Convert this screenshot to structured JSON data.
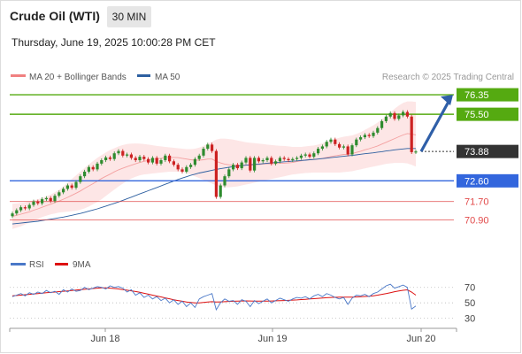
{
  "header": {
    "title": "Crude Oil (WTI)",
    "timeframe": "30 MIN",
    "timestamp": "Thursday, June 19, 2025 10:00:28 PM CET"
  },
  "legend": {
    "items": [
      {
        "label": "MA 20 + Bollinger Bands",
        "color": "#f08080"
      },
      {
        "label": "MA 50",
        "color": "#2d5fa0"
      }
    ],
    "credit": "Research © 2025 Trading Central"
  },
  "rsi_legend": {
    "items": [
      {
        "label": "RSI",
        "color": "#4a78c8"
      },
      {
        "label": "9MA",
        "color": "#dd1111"
      }
    ]
  },
  "colors": {
    "up_candle": "#2e8b2e",
    "down_candle": "#cc2222",
    "resistance": "#55aa11",
    "support": "#3366dd",
    "target_red": "#e04444",
    "current": "#333333",
    "arrow": "#2f5fa8",
    "band_fill": "#fde6e6",
    "ma20": "#f4a0a0",
    "ma50": "#2d5fa0",
    "rsi": "#4a78c8",
    "rsi_ma": "#dd1111"
  },
  "chart_data": [
    {
      "type": "candlestick",
      "title": "Crude Oil (WTI)",
      "timeframe": "30 MIN",
      "x_ticks": [
        "Jun 18",
        "Jun 19",
        "Jun 20"
      ],
      "ylim": [
        70.3,
        76.7
      ],
      "levels": [
        {
          "value": 76.35,
          "label": "76.35",
          "kind": "resistance",
          "style": "tag"
        },
        {
          "value": 75.5,
          "label": "75.50",
          "kind": "resistance",
          "style": "tag"
        },
        {
          "value": 73.88,
          "label": "73.88",
          "kind": "current",
          "style": "tag"
        },
        {
          "value": 72.6,
          "label": "72.60",
          "kind": "support",
          "style": "tag"
        },
        {
          "value": 71.7,
          "label": "71.70",
          "kind": "support",
          "style": "text"
        },
        {
          "value": 70.9,
          "label": "70.90",
          "kind": "support",
          "style": "text"
        }
      ],
      "projection": {
        "from": 73.88,
        "to": 76.35
      },
      "close": [
        71.18,
        71.32,
        71.45,
        71.4,
        71.55,
        71.7,
        71.62,
        71.8,
        71.85,
        71.72,
        71.95,
        72.1,
        72.25,
        72.4,
        72.3,
        72.55,
        72.8,
        73.0,
        73.2,
        73.1,
        73.35,
        73.5,
        73.62,
        73.55,
        73.8,
        73.9,
        73.7,
        73.75,
        73.6,
        73.5,
        73.65,
        73.55,
        73.4,
        73.6,
        73.35,
        73.5,
        73.7,
        73.45,
        73.3,
        73.1,
        73.0,
        73.2,
        73.3,
        73.55,
        73.7,
        74.0,
        74.18,
        73.9,
        71.9,
        72.4,
        72.8,
        73.1,
        73.3,
        73.15,
        73.4,
        73.6,
        73.05,
        73.6,
        73.45,
        73.5,
        73.6,
        73.35,
        73.45,
        73.6,
        73.55,
        73.5,
        73.55,
        73.6,
        73.7,
        73.75,
        73.65,
        73.8,
        74.0,
        74.1,
        74.3,
        74.4,
        74.2,
        74.05,
        74.1,
        73.75,
        74.15,
        74.4,
        74.5,
        74.6,
        74.55,
        74.7,
        74.9,
        75.2,
        75.4,
        75.55,
        75.3,
        75.45,
        75.6,
        75.4,
        73.85,
        73.88
      ],
      "ma20": [
        71.05,
        71.1,
        71.15,
        71.2,
        71.25,
        71.32,
        71.38,
        71.45,
        71.52,
        71.58,
        71.65,
        71.72,
        71.8,
        71.88,
        71.97,
        72.06,
        72.16,
        72.27,
        72.38,
        72.48,
        72.59,
        72.7,
        72.8,
        72.89,
        72.99,
        73.08,
        73.15,
        73.22,
        73.28,
        73.34,
        73.4,
        73.45,
        73.49,
        73.53,
        73.56,
        73.58,
        73.61,
        73.62,
        73.62,
        73.61,
        73.58,
        73.55,
        73.52,
        73.5,
        73.5,
        73.52,
        73.55,
        73.55,
        73.45,
        73.38,
        73.33,
        73.3,
        73.28,
        73.27,
        73.27,
        73.29,
        73.28,
        73.3,
        73.31,
        73.33,
        73.34,
        73.34,
        73.35,
        73.36,
        73.37,
        73.38,
        73.4,
        73.44,
        73.47,
        73.51,
        73.52,
        73.54,
        73.55,
        73.58,
        73.62,
        73.66,
        73.69,
        73.72,
        73.75,
        73.76,
        73.79,
        73.84,
        73.89,
        73.95,
        74.0,
        74.06,
        74.12,
        74.2,
        74.28,
        74.36,
        74.44,
        74.52,
        74.6,
        74.66,
        74.64,
        74.6
      ],
      "bb_upper": [
        71.6,
        71.62,
        71.64,
        71.66,
        71.7,
        71.75,
        71.8,
        71.86,
        71.93,
        72.0,
        72.1,
        72.22,
        72.36,
        72.52,
        72.68,
        72.84,
        73.0,
        73.16,
        73.32,
        73.46,
        73.6,
        73.72,
        73.84,
        73.94,
        74.02,
        74.1,
        74.16,
        74.2,
        74.22,
        74.23,
        74.22,
        74.2,
        74.18,
        74.15,
        74.12,
        74.1,
        74.08,
        74.06,
        74.04,
        74.02,
        74.0,
        73.98,
        73.98,
        74.0,
        74.05,
        74.12,
        74.22,
        74.3,
        74.4,
        74.44,
        74.44,
        74.42,
        74.4,
        74.36,
        74.32,
        74.28,
        74.26,
        74.24,
        74.22,
        74.2,
        74.18,
        74.16,
        74.14,
        74.13,
        74.12,
        74.1,
        74.08,
        74.08,
        74.08,
        74.1,
        74.12,
        74.14,
        74.18,
        74.24,
        74.3,
        74.36,
        74.42,
        74.48,
        74.52,
        74.55,
        74.58,
        74.64,
        74.72,
        74.82,
        74.92,
        75.02,
        75.14,
        75.28,
        75.42,
        75.58,
        75.74,
        75.88,
        76.0,
        76.06,
        76.06,
        76.04
      ],
      "bb_lower": [
        70.5,
        70.56,
        70.62,
        70.7,
        70.78,
        70.86,
        70.94,
        71.02,
        71.08,
        71.14,
        71.18,
        71.22,
        71.24,
        71.26,
        71.28,
        71.3,
        71.34,
        71.4,
        71.48,
        71.58,
        71.68,
        71.8,
        71.94,
        72.08,
        72.22,
        72.36,
        72.48,
        72.6,
        72.7,
        72.78,
        72.84,
        72.88,
        72.9,
        72.92,
        72.94,
        72.96,
        72.98,
        73.0,
        73.0,
        73.0,
        72.98,
        72.94,
        72.88,
        72.8,
        72.72,
        72.64,
        72.56,
        72.48,
        72.4,
        72.34,
        72.32,
        72.32,
        72.34,
        72.36,
        72.4,
        72.44,
        72.48,
        72.52,
        72.56,
        72.6,
        72.64,
        72.68,
        72.72,
        72.76,
        72.8,
        72.84,
        72.88,
        72.9,
        72.92,
        72.94,
        72.95,
        72.96,
        72.96,
        72.96,
        72.96,
        72.96,
        72.96,
        72.96,
        72.98,
        73.0,
        73.02,
        73.06,
        73.1,
        73.14,
        73.18,
        73.22,
        73.26,
        73.3,
        73.34,
        73.36,
        73.38,
        73.38,
        73.38,
        73.36,
        73.3,
        73.22
      ],
      "ma50": [
        70.72,
        70.74,
        70.76,
        70.78,
        70.8,
        70.82,
        70.84,
        70.87,
        70.9,
        70.93,
        70.96,
        70.99,
        71.02,
        71.06,
        71.1,
        71.14,
        71.18,
        71.23,
        71.28,
        71.33,
        71.38,
        71.44,
        71.5,
        71.56,
        71.62,
        71.68,
        71.75,
        71.82,
        71.89,
        71.96,
        72.03,
        72.1,
        72.17,
        72.24,
        72.31,
        72.38,
        72.45,
        72.52,
        72.59,
        72.66,
        72.72,
        72.78,
        72.84,
        72.89,
        72.94,
        72.98,
        73.02,
        73.06,
        73.1,
        73.13,
        73.16,
        73.19,
        73.22,
        73.24,
        73.26,
        73.28,
        73.3,
        73.32,
        73.33,
        73.35,
        73.37,
        73.38,
        73.4,
        73.41,
        73.43,
        73.44,
        73.46,
        73.47,
        73.49,
        73.5,
        73.52,
        73.53,
        73.55,
        73.57,
        73.59,
        73.61,
        73.63,
        73.65,
        73.67,
        73.69,
        73.71,
        73.73,
        73.76,
        73.78,
        73.8,
        73.82,
        73.85,
        73.87,
        73.9,
        73.92,
        73.95,
        73.97,
        73.99,
        74.01,
        74.01,
        74.01
      ]
    },
    {
      "type": "line",
      "title": "RSI",
      "ylim": [
        25,
        80
      ],
      "y_ticks": [
        70,
        50,
        30
      ],
      "series": [
        {
          "name": "RSI",
          "values": [
            58,
            60,
            62,
            59,
            63,
            61,
            64,
            62,
            66,
            63,
            65,
            61,
            67,
            64,
            68,
            65,
            66,
            70,
            67,
            69,
            71,
            70,
            68,
            72,
            70,
            71,
            69,
            64,
            67,
            60,
            63,
            57,
            60,
            55,
            58,
            53,
            56,
            50,
            54,
            48,
            52,
            45,
            50,
            44,
            55,
            58,
            60,
            62,
            41,
            50,
            55,
            52,
            53,
            48,
            54,
            52,
            45,
            53,
            49,
            52,
            55,
            50,
            53,
            56,
            54,
            52,
            55,
            57,
            56,
            58,
            55,
            59,
            61,
            58,
            62,
            60,
            57,
            55,
            57,
            48,
            56,
            60,
            59,
            61,
            58,
            62,
            64,
            68,
            72,
            74,
            69,
            71,
            73,
            70,
            42,
            46
          ]
        },
        {
          "name": "9MA",
          "values": [
            59,
            59.5,
            60,
            60.5,
            61,
            61.5,
            62,
            62.5,
            63,
            63.5,
            64,
            64.5,
            65,
            65.5,
            66,
            66.5,
            67,
            67.5,
            68,
            68.5,
            69,
            69.5,
            69.5,
            69,
            68.5,
            68,
            67.2,
            66.4,
            65.6,
            64.6,
            63.6,
            62.4,
            61.2,
            60,
            58.8,
            57.6,
            56.4,
            55.2,
            54,
            53,
            52,
            51,
            50.5,
            50,
            50,
            50.5,
            51,
            51.5,
            51,
            51.2,
            51.5,
            51.8,
            52,
            52.2,
            52.4,
            52.5,
            52.4,
            52.3,
            52.2,
            52.2,
            52.3,
            52.4,
            52.6,
            52.8,
            53,
            53.2,
            53.5,
            53.8,
            54.2,
            54.6,
            55,
            55.4,
            55.8,
            56.2,
            56.6,
            57,
            57.2,
            57.3,
            57.4,
            57.3,
            57.4,
            57.6,
            57.9,
            58.2,
            58.6,
            59.2,
            60,
            61,
            62,
            63.2,
            64.4,
            65.4,
            66.2,
            66.8,
            64,
            60
          ]
        }
      ]
    }
  ]
}
